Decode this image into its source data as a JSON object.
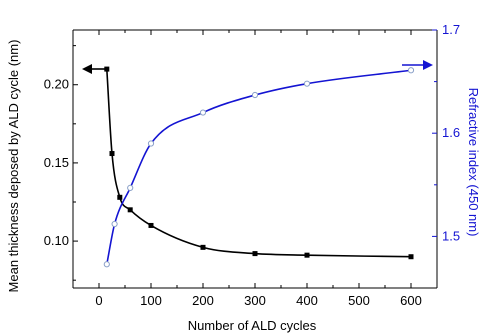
{
  "chart_data": {
    "type": "line",
    "title": "",
    "xlabel": "Number of ALD cycles",
    "ylabel_left": "Mean thickness deposed by ALD cycle (nm)",
    "ylabel_right": "Refractive index (450 nm)",
    "xlim": [
      -50,
      650
    ],
    "ylim_left": [
      0.07,
      0.235
    ],
    "ylim_right": [
      1.45,
      1.7
    ],
    "x_ticks": [
      "0",
      "100",
      "200",
      "300",
      "400",
      "500",
      "600"
    ],
    "y_left_ticks": [
      "0.10",
      "0.15",
      "0.20"
    ],
    "y_right_ticks": [
      "1.5",
      "1.6",
      "1.7"
    ],
    "grid": false,
    "series": [
      {
        "axis": "left",
        "color": "#000000",
        "marker": "filled-square",
        "x": [
          15,
          25,
          40,
          60,
          100,
          200,
          300,
          400,
          600
        ],
        "y": [
          0.21,
          0.156,
          0.128,
          0.12,
          0.11,
          0.096,
          0.092,
          0.091,
          0.09
        ]
      },
      {
        "axis": "right",
        "color": "#1414d2",
        "marker": "open-circle",
        "x": [
          15,
          30,
          60,
          100,
          200,
          300,
          400,
          600
        ],
        "y": [
          1.473,
          1.512,
          1.547,
          1.59,
          1.62,
          1.637,
          1.648,
          1.661
        ]
      }
    ],
    "arrows": [
      {
        "axis": "left",
        "direction": "left",
        "color": "#000000"
      },
      {
        "axis": "right",
        "direction": "right",
        "color": "#1414d2"
      }
    ]
  }
}
